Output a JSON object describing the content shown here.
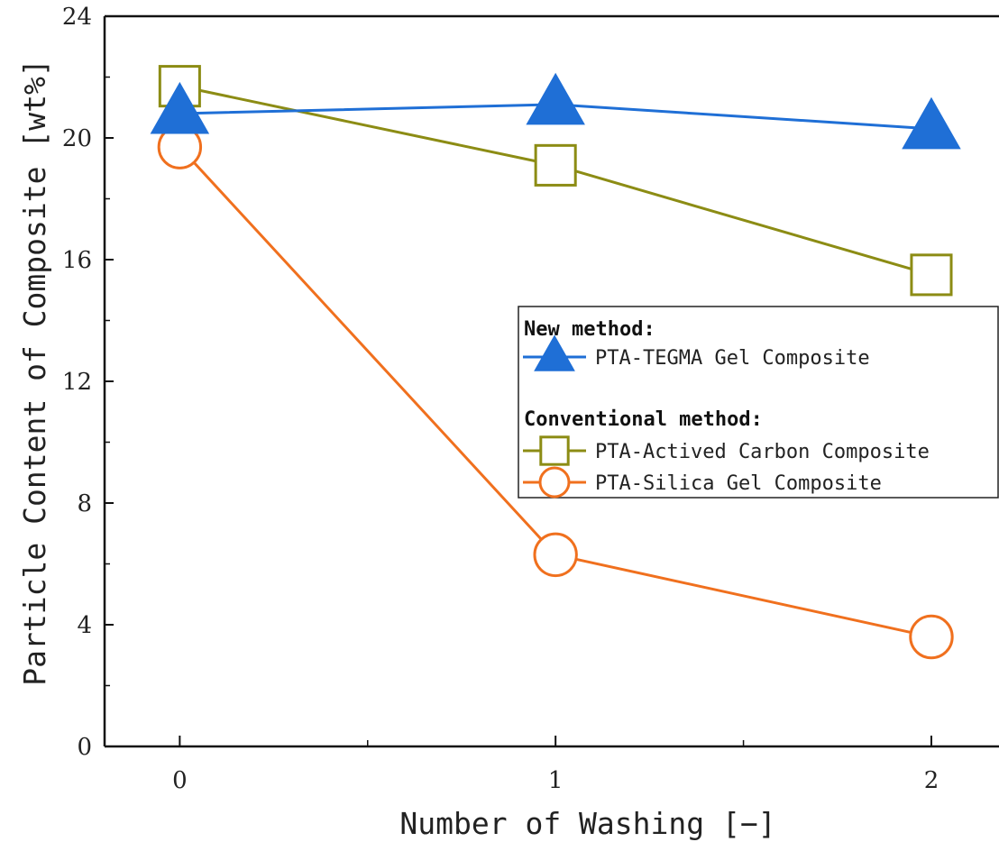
{
  "chart_data": {
    "type": "line",
    "xlabel": "Number of Washing [−]",
    "ylabel": "Particle Content of Composite [wt%]",
    "x": [
      0,
      1,
      2
    ],
    "x_ticks": [
      "0",
      "1",
      "2"
    ],
    "xlim": [
      -0.2,
      2.18
    ],
    "ylim": [
      0,
      24
    ],
    "y_ticks": [
      "0",
      "4",
      "8",
      "12",
      "16",
      "20",
      "24"
    ],
    "grid": false,
    "legend_position": "center-right",
    "legend": {
      "group1_heading": "New method:",
      "group2_heading": "Conventional method:"
    },
    "series": [
      {
        "name": "PTA-TEGMA Gel Composite",
        "values": [
          20.8,
          21.1,
          20.3
        ],
        "color": "#1f6fd6",
        "marker": "triangle"
      },
      {
        "name": "PTA-Actived Carbon Composite",
        "values": [
          21.7,
          19.1,
          15.5
        ],
        "color": "#8c8c14",
        "marker": "square"
      },
      {
        "name": "PTA-Silica Gel Composite",
        "values": [
          19.7,
          6.3,
          3.6
        ],
        "color": "#f0701e",
        "marker": "circle"
      }
    ]
  }
}
